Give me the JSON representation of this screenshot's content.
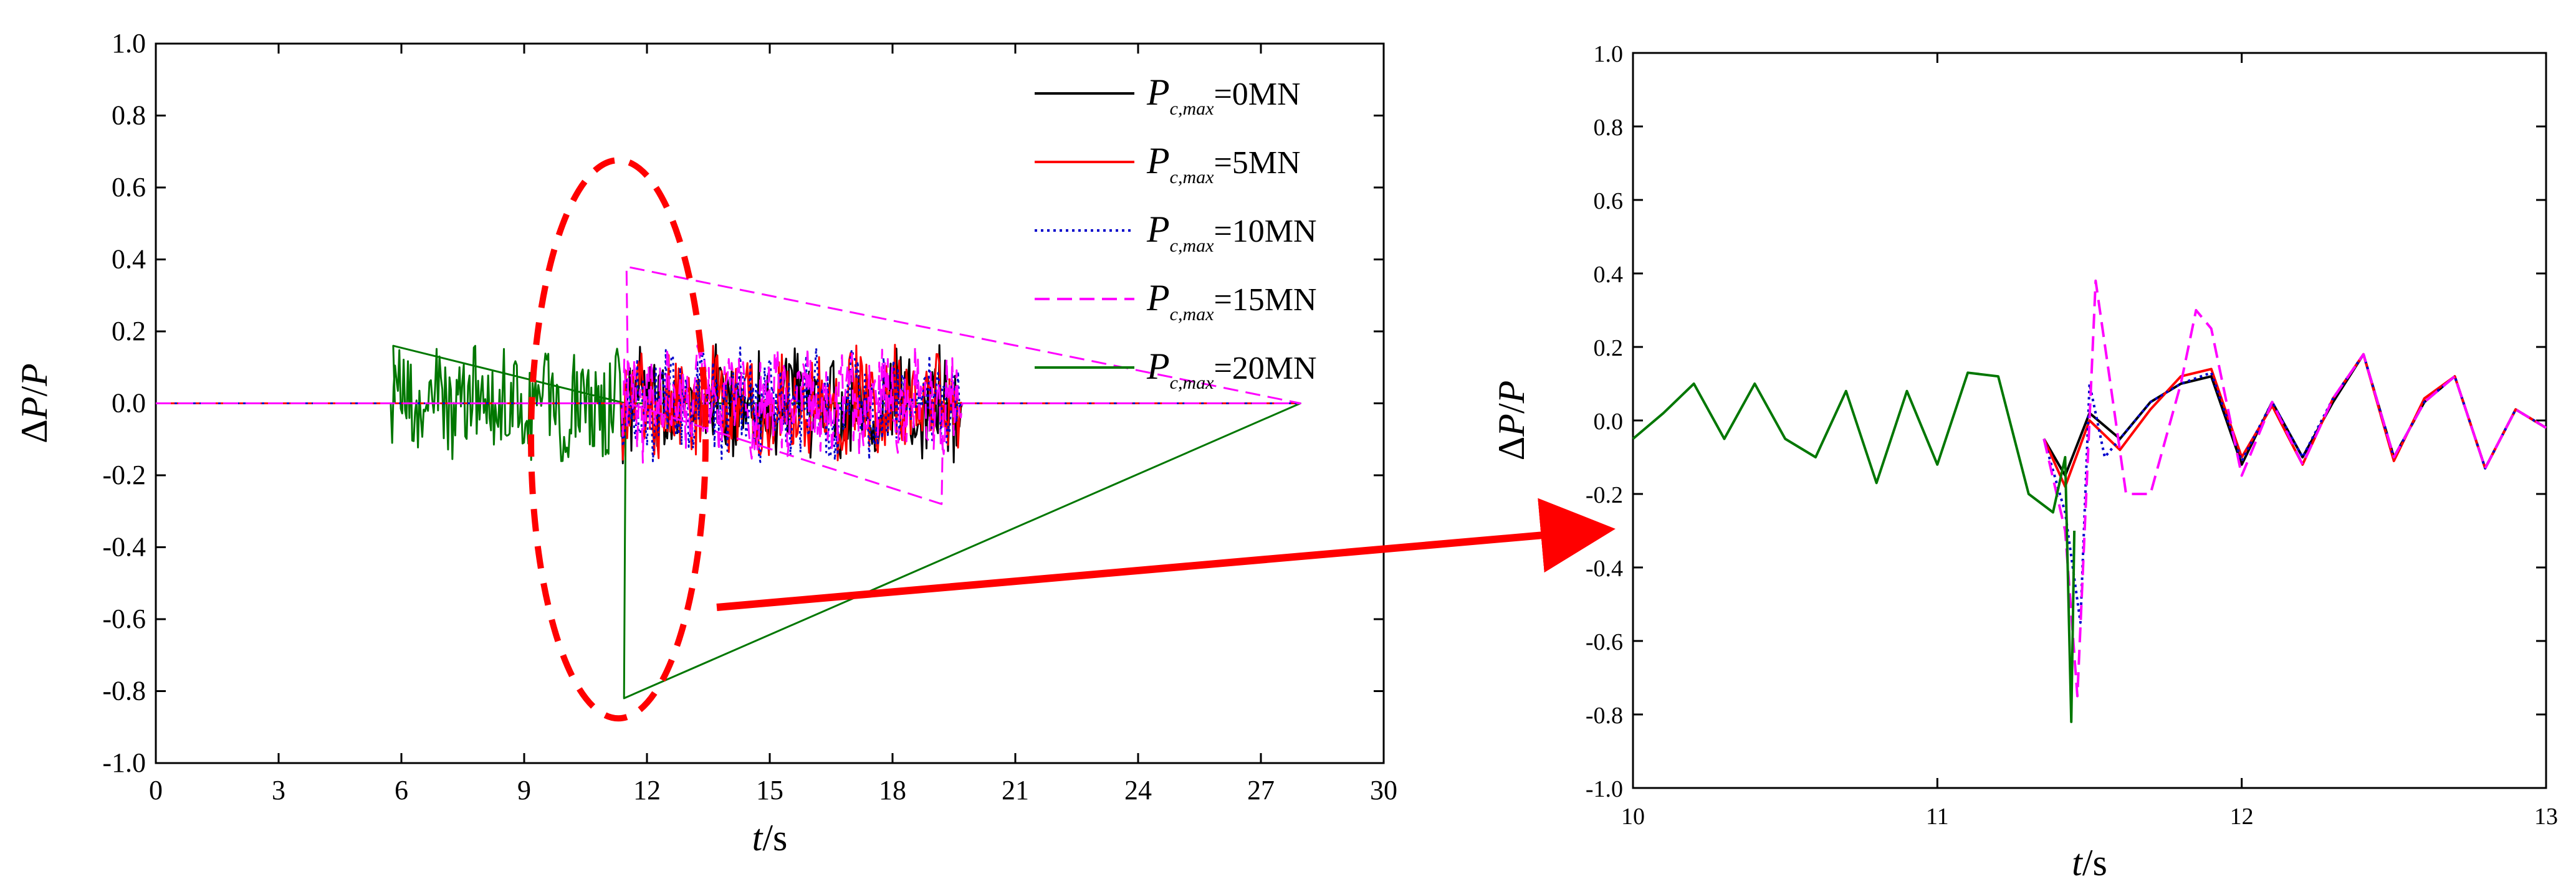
{
  "chart_data": [
    {
      "type": "line",
      "title": "",
      "xlabel": {
        "var": "t",
        "unit": "/s"
      },
      "ylabel": "ΔP/P",
      "xlim": [
        0,
        30
      ],
      "ylim": [
        -1.0,
        1.0
      ],
      "xticks": [
        0,
        3,
        6,
        9,
        12,
        15,
        18,
        21,
        24,
        27,
        30
      ],
      "yticks": [
        1.0,
        0.8,
        0.6,
        0.4,
        0.2,
        0.0,
        -0.2,
        -0.4,
        -0.6,
        -0.8,
        -1.0
      ],
      "grid": false,
      "legend_position": "top-right",
      "series": [
        {
          "name": "P_c,max=0MN",
          "legend": {
            "sym": "P",
            "sub": "c,max",
            "val": "=0MN"
          },
          "color": "#000000",
          "dash": "solid",
          "segments": [
            {
              "x_range": [
                0,
                28
              ],
              "values": "signal: zero before 11.4 s, oscillation ±0.15 from 11.4 s to 19.7 s, zero after"
            }
          ]
        },
        {
          "name": "P_c,max=5MN",
          "legend": {
            "sym": "P",
            "sub": "c,max",
            "val": "=5MN"
          },
          "color": "#ff0000",
          "dash": "solid"
        },
        {
          "name": "P_c,max=10MN",
          "legend": {
            "sym": "P",
            "sub": "c,max",
            "val": "=10MN"
          },
          "color": "#0000cc",
          "dash": "dot"
        },
        {
          "name": "P_c,max=15MN",
          "legend": {
            "sym": "P",
            "sub": "c,max",
            "val": "=15MN"
          },
          "color": "#ff00ff",
          "dash": "dash"
        },
        {
          "name": "P_c,max=20MN",
          "legend": {
            "sym": "P",
            "sub": "c,max",
            "val": "=20MN"
          },
          "color": "#007700",
          "dash": "solid"
        }
      ],
      "key_points": [
        {
          "series": "P_c,max=15MN",
          "x": 11.5,
          "y": 0.38
        },
        {
          "series": "P_c,max=20MN",
          "x": 11.44,
          "y": -0.82
        },
        {
          "series": "P_c,max=20MN",
          "x": 5.8,
          "y": 0.16
        },
        {
          "series": "P_c,max=15MN",
          "x": 19.2,
          "y": -0.28
        }
      ],
      "annotation": {
        "type": "ellipse",
        "center_x": 11.3,
        "center_y": -0.1,
        "color": "#ff0000",
        "style": "dashed"
      }
    },
    {
      "type": "line",
      "title": "",
      "xlabel": {
        "var": "t",
        "unit": "/s"
      },
      "ylabel": "ΔP/P",
      "xlim": [
        10,
        13
      ],
      "ylim": [
        -1.0,
        1.0
      ],
      "xticks": [
        10,
        11,
        12,
        13
      ],
      "yticks": [
        1.0,
        0.8,
        0.6,
        0.4,
        0.2,
        0.0,
        -0.2,
        -0.4,
        -0.6,
        -0.8,
        -1.0
      ],
      "grid": false,
      "series": [
        {
          "name": "P_c,max=0MN",
          "color": "#000000",
          "dash": "solid",
          "x": [
            11.35,
            11.42,
            11.5,
            11.6,
            11.7,
            11.8,
            11.9,
            12.0,
            12.1,
            12.2,
            12.3,
            12.4,
            12.5,
            12.6,
            12.7,
            12.8,
            12.9,
            13.0
          ],
          "y": [
            -0.05,
            -0.15,
            0.02,
            -0.05,
            0.05,
            0.1,
            0.12,
            -0.12,
            0.05,
            -0.1,
            0.05,
            0.18,
            -0.1,
            0.05,
            0.12,
            -0.13,
            0.03,
            -0.02
          ]
        },
        {
          "name": "P_c,max=5MN",
          "color": "#ff0000",
          "dash": "solid",
          "x": [
            11.35,
            11.42,
            11.5,
            11.6,
            11.7,
            11.8,
            11.9,
            12.0,
            12.1,
            12.2,
            12.3,
            12.4,
            12.5,
            12.6,
            12.7,
            12.8,
            12.9,
            13.0
          ],
          "y": [
            -0.05,
            -0.18,
            0.0,
            -0.08,
            0.03,
            0.12,
            0.14,
            -0.1,
            0.04,
            -0.12,
            0.06,
            0.18,
            -0.11,
            0.06,
            0.12,
            -0.13,
            0.03,
            -0.02
          ]
        },
        {
          "name": "P_c,max=10MN",
          "color": "#0000cc",
          "dash": "dot",
          "x": [
            11.35,
            11.42,
            11.47,
            11.5,
            11.55,
            11.6,
            11.7,
            11.8,
            11.9,
            12.0,
            12.1,
            12.2,
            12.3,
            12.4,
            12.5,
            12.6,
            12.7,
            12.8,
            12.9,
            13.0
          ],
          "y": [
            -0.05,
            -0.25,
            -0.55,
            0.1,
            -0.1,
            -0.05,
            0.05,
            0.1,
            0.13,
            -0.11,
            0.05,
            -0.1,
            0.06,
            0.18,
            -0.1,
            0.05,
            0.12,
            -0.13,
            0.03,
            -0.02
          ]
        },
        {
          "name": "P_c,max=15MN",
          "color": "#ff00ff",
          "dash": "dash",
          "x": [
            11.35,
            11.42,
            11.46,
            11.52,
            11.56,
            11.62,
            11.7,
            11.8,
            11.85,
            11.9,
            12.0,
            12.1,
            12.2,
            12.3,
            12.4,
            12.5,
            12.6,
            12.7,
            12.8,
            12.9,
            13.0
          ],
          "y": [
            -0.05,
            -0.3,
            -0.75,
            0.38,
            0.15,
            -0.2,
            -0.2,
            0.1,
            0.3,
            0.25,
            -0.15,
            0.05,
            -0.12,
            0.06,
            0.18,
            -0.1,
            0.05,
            0.12,
            -0.13,
            0.03,
            -0.02
          ]
        },
        {
          "name": "P_c,max=20MN",
          "color": "#007700",
          "dash": "solid",
          "x": [
            10.0,
            10.1,
            10.2,
            10.3,
            10.4,
            10.5,
            10.6,
            10.7,
            10.8,
            10.9,
            11.0,
            11.1,
            11.2,
            11.3,
            11.38,
            11.42,
            11.44,
            11.45
          ],
          "y": [
            -0.05,
            0.02,
            0.1,
            -0.05,
            0.1,
            -0.05,
            -0.1,
            0.08,
            -0.17,
            0.08,
            -0.12,
            0.13,
            0.12,
            -0.2,
            -0.25,
            -0.1,
            -0.82,
            -0.3
          ]
        }
      ]
    }
  ]
}
